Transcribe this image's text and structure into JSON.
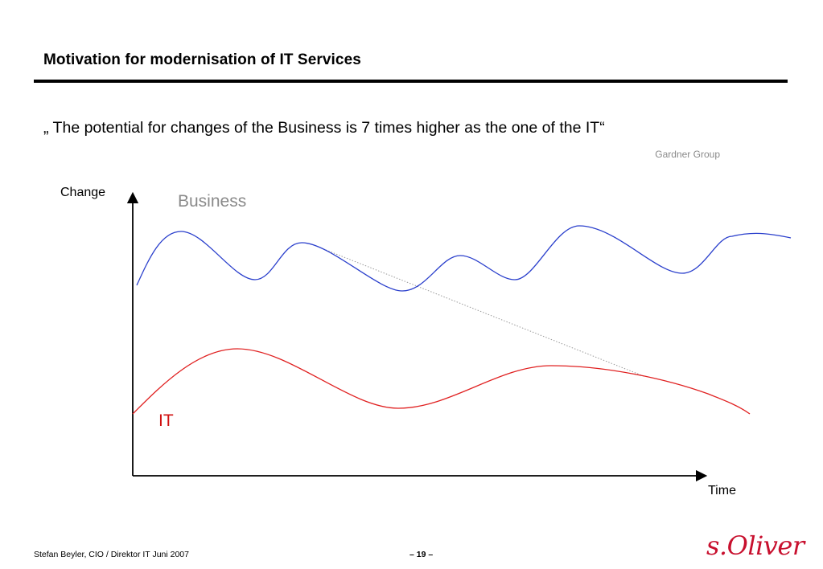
{
  "slide": {
    "title": "Motivation for modernisation of IT Services",
    "quote": "„ The potential for changes of the Business is 7 times higher as the one of the IT“",
    "source": "Gardner Group"
  },
  "diagram": {
    "y_axis_label": "Change",
    "x_axis_label": "Time",
    "business_label": "Business",
    "it_label": "IT",
    "colors": {
      "business": "#2a3fcc",
      "it": "#e02020",
      "business_label": "#8a8a8a",
      "it_label": "#d01010",
      "trend": "#9a9a9a"
    }
  },
  "footer": {
    "author": "Stefan Beyler, CIO / Direktor IT Juni 2007",
    "page": "– 19 –",
    "logo_text": "s.Oliver"
  }
}
